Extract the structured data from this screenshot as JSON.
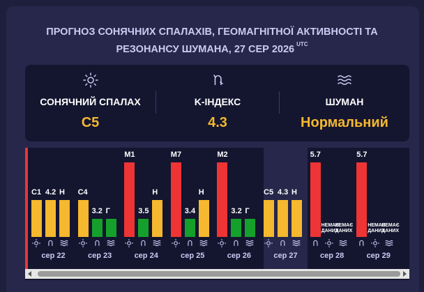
{
  "colors": {
    "red": "#ee3434",
    "yellow": "#f5b82e",
    "green": "#15a02c",
    "accent": "#f5b82e"
  },
  "title": {
    "line1": "ПРОГНОЗ СОНЯЧНИХ СПАЛАХІВ, ГЕОМАГНІТНОЇ АКТИВНОСТІ ТА",
    "line2": "РЕЗОНАНСУ ШУМАНА, 27 СЕР 2026",
    "utc": "UTC"
  },
  "stats": [
    {
      "icon": "sun-icon",
      "label": "СОНЯЧНИЙ СПАЛАХ",
      "value": "C5"
    },
    {
      "icon": "magnet-icon",
      "label": "K-ІНДЕКС",
      "value": "4.3"
    },
    {
      "icon": "waves-icon",
      "label": "ШУМАН",
      "value": "Нормальний"
    }
  ],
  "days": [
    {
      "date": "сер 22",
      "flare": {
        "label": "C1",
        "level": 0.5,
        "color": "yellow"
      },
      "kp": {
        "label": "4.2",
        "level": 0.5,
        "color": "yellow"
      },
      "schumann": {
        "label": "Н",
        "level": 0.5,
        "color": "yellow"
      }
    },
    {
      "date": "сер 23",
      "flare": {
        "label": "C4",
        "level": 0.5,
        "color": "yellow"
      },
      "kp": {
        "label": "3.2",
        "level": 0.24,
        "color": "green"
      },
      "schumann": {
        "label": "Г",
        "level": 0.24,
        "color": "green"
      }
    },
    {
      "date": "сер 24",
      "flare": {
        "label": "M1",
        "level": 1.0,
        "color": "red"
      },
      "kp": {
        "label": "3.5",
        "level": 0.24,
        "color": "green"
      },
      "schumann": {
        "label": "Н",
        "level": 0.5,
        "color": "yellow"
      }
    },
    {
      "date": "сер 25",
      "flare": {
        "label": "M7",
        "level": 1.0,
        "color": "red"
      },
      "kp": {
        "label": "3.4",
        "level": 0.24,
        "color": "green"
      },
      "schumann": {
        "label": "Н",
        "level": 0.5,
        "color": "yellow"
      }
    },
    {
      "date": "сер 26",
      "flare": {
        "label": "M2",
        "level": 1.0,
        "color": "red"
      },
      "kp": {
        "label": "3.2",
        "level": 0.24,
        "color": "green"
      },
      "schumann": {
        "label": "Г",
        "level": 0.24,
        "color": "green"
      }
    },
    {
      "date": "сер 27",
      "flare": {
        "label": "C5",
        "level": 0.5,
        "color": "yellow"
      },
      "kp": {
        "label": "4.3",
        "level": 0.5,
        "color": "yellow"
      },
      "schumann": {
        "label": "Н",
        "level": 0.5,
        "color": "yellow"
      },
      "current": true
    },
    {
      "date": "сер 28",
      "kp": {
        "label": "5.7",
        "level": 1.0,
        "color": "red"
      },
      "no_data": "НЕМАЄ ДАНИХ"
    },
    {
      "date": "сер 29",
      "kp": {
        "label": "5.7",
        "level": 1.0,
        "color": "red"
      },
      "no_data": "НЕМАЄ ДАНИХ"
    }
  ]
}
